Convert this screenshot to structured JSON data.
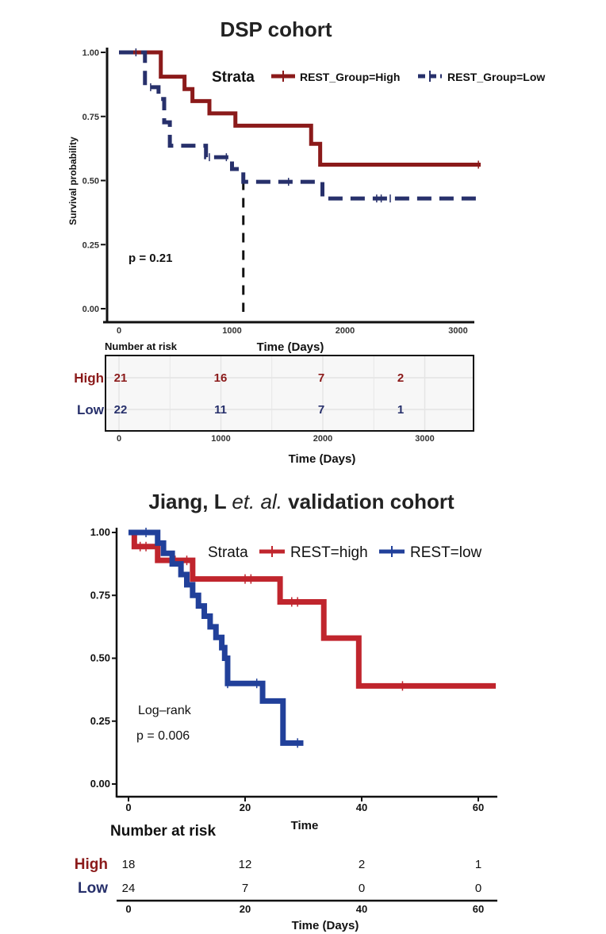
{
  "chart_data": [
    {
      "type": "line",
      "subtype": "kaplan-meier",
      "title": "DSP cohort",
      "xlabel": "Time (Days)",
      "ylabel": "Survival probability",
      "xlim": [
        0,
        3200
      ],
      "ylim": [
        0,
        1
      ],
      "x_ticks": [
        "0",
        "1000",
        "2000",
        "3000"
      ],
      "y_ticks": [
        "0.00",
        "0.25",
        "0.50",
        "0.75",
        "1.00"
      ],
      "legend_title": "Strata",
      "legend_position": "top-right",
      "p_value": "p = 0.21",
      "median_line_x": 1100,
      "series": [
        {
          "name": "REST_Group=High",
          "color": "#8b1a1a",
          "style": "solid",
          "steps": [
            [
              0,
              1.0
            ],
            [
              370,
              0.905
            ],
            [
              580,
              0.857
            ],
            [
              650,
              0.81
            ],
            [
              800,
              0.762
            ],
            [
              1030,
              0.714
            ],
            [
              1700,
              0.643
            ],
            [
              1780,
              0.562
            ],
            [
              3200,
              0.562
            ]
          ],
          "censor_x": [
            3180
          ]
        },
        {
          "name": "REST_Group=Low",
          "color": "#27306b",
          "style": "dashed",
          "steps": [
            [
              0,
              1.0
            ],
            [
              230,
              0.864
            ],
            [
              350,
              0.818
            ],
            [
              400,
              0.727
            ],
            [
              450,
              0.636
            ],
            [
              770,
              0.591
            ],
            [
              1000,
              0.545
            ],
            [
              1100,
              0.495
            ],
            [
              1800,
              0.43
            ],
            [
              3200,
              0.43
            ]
          ],
          "censor_x": [
            150,
            280,
            800,
            950,
            1500,
            2280,
            2320,
            2400
          ]
        }
      ],
      "risk_table": {
        "title": "Number at risk",
        "xlabel": "Time (Days)",
        "x_ticks": [
          "0",
          "1000",
          "2000",
          "3000"
        ],
        "times": [
          0,
          900,
          1800,
          2700
        ],
        "rows": [
          {
            "label": "High",
            "color": "#8b1a1a",
            "values": [
              "21",
              "16",
              "7",
              "2"
            ]
          },
          {
            "label": "Low",
            "color": "#27306b",
            "values": [
              "22",
              "11",
              "7",
              "1"
            ]
          }
        ]
      }
    },
    {
      "type": "line",
      "subtype": "kaplan-meier",
      "title_parts": [
        "Jiang, L ",
        "et. al.",
        " validation cohort"
      ],
      "xlabel": "Time",
      "ylabel": "",
      "xlim": [
        -1,
        63
      ],
      "ylim": [
        0,
        1
      ],
      "x_ticks": [
        "0",
        "20",
        "40",
        "60"
      ],
      "y_ticks": [
        "0.00",
        "0.25",
        "0.50",
        "0.75",
        "1.00"
      ],
      "legend_title": "Strata",
      "legend_position": "top-right",
      "annotation_lines": [
        "Log–rank",
        "p = 0.006"
      ],
      "series": [
        {
          "name": "REST=high",
          "color": "#c0252d",
          "style": "solid",
          "steps": [
            [
              0,
              1.0
            ],
            [
              1,
              0.944
            ],
            [
              5,
              0.889
            ],
            [
              11,
              0.815
            ],
            [
              26,
              0.724
            ],
            [
              33.5,
              0.58
            ],
            [
              39.5,
              0.39
            ],
            [
              63,
              0.39
            ]
          ],
          "censor_x": [
            2,
            3,
            8,
            10,
            20,
            21,
            28,
            29,
            47
          ]
        },
        {
          "name": "REST=low",
          "color": "#21409a",
          "style": "solid",
          "steps": [
            [
              0,
              1.0
            ],
            [
              5,
              0.958
            ],
            [
              6,
              0.917
            ],
            [
              7.5,
              0.875
            ],
            [
              9,
              0.833
            ],
            [
              10,
              0.792
            ],
            [
              11,
              0.75
            ],
            [
              12,
              0.708
            ],
            [
              13,
              0.667
            ],
            [
              14,
              0.625
            ],
            [
              15,
              0.583
            ],
            [
              16,
              0.542
            ],
            [
              16.5,
              0.5
            ],
            [
              17,
              0.4
            ],
            [
              23,
              0.33
            ],
            [
              26.5,
              0.163
            ],
            [
              30,
              0.163
            ]
          ],
          "censor_x": [
            3,
            17,
            22,
            29
          ]
        }
      ],
      "risk_table": {
        "title": "Number at risk",
        "xlabel": "Time (Days)",
        "x_ticks": [
          "0",
          "20",
          "40",
          "60"
        ],
        "times": [
          0,
          20,
          40,
          60
        ],
        "rows": [
          {
            "label": "High",
            "color": "#8b1a1a",
            "values": [
              "18",
              "12",
              "2",
              "1"
            ]
          },
          {
            "label": "Low",
            "color": "#27306b",
            "values": [
              "24",
              "7",
              "0",
              "0"
            ]
          }
        ]
      }
    }
  ]
}
